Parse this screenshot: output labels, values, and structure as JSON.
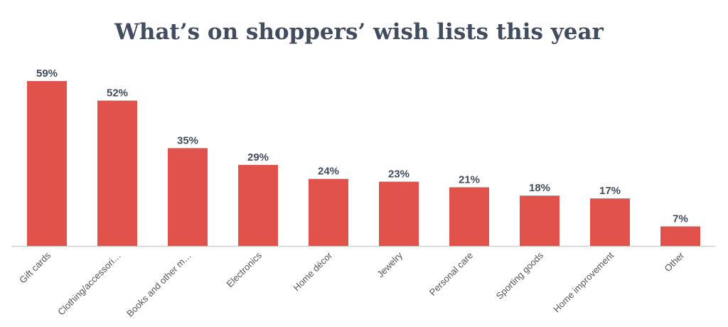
{
  "chart_data": {
    "type": "bar",
    "title": "What’s on shoppers’ wish lists this year",
    "categories": [
      "Gift cards",
      "Clothing/accessori…",
      "Books and other m…",
      "Electronics",
      "Home décor",
      "Jewelry",
      "Personal care",
      "Sporting goods",
      "Home improvement",
      "Other"
    ],
    "values": [
      59,
      52,
      35,
      29,
      24,
      23,
      21,
      18,
      17,
      7
    ],
    "value_labels": [
      "59%",
      "52%",
      "35%",
      "29%",
      "24%",
      "23%",
      "21%",
      "18%",
      "17%",
      "7%"
    ],
    "color": "#e0524a"
  }
}
